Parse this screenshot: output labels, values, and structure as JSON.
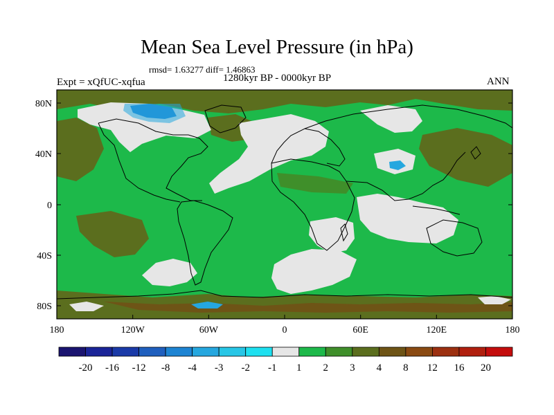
{
  "title": "Mean Sea Level Pressure (in hPa)",
  "stats": "rmsd= 1.63277  diff= 1.46863",
  "period": "1280kyr BP - 0000kyr BP",
  "experiment": "Expt = xQfUC-xqfua",
  "season": "ANN",
  "lat_ticks": [
    "80N",
    "40N",
    "0",
    "40S",
    "80S"
  ],
  "lon_ticks": [
    "180",
    "120W",
    "60W",
    "0",
    "60E",
    "120E",
    "180"
  ],
  "colorbar": {
    "labels": [
      "-20",
      "-16",
      "-12",
      "-8",
      "-4",
      "-3",
      "-2",
      "-1",
      "1",
      "2",
      "3",
      "4",
      "8",
      "12",
      "16",
      "20"
    ],
    "colors": [
      "#1a1470",
      "#1a2498",
      "#1a3aa8",
      "#1f5fbe",
      "#1d84d3",
      "#25a7df",
      "#27c6e6",
      "#1ee0f0",
      "#e6e6e6",
      "#1db94a",
      "#3f8f2a",
      "#5b6e1e",
      "#6e5416",
      "#8a4a12",
      "#9c3010",
      "#b01f0e",
      "#c40d0d"
    ]
  },
  "colors": {
    "base": "#1db94a",
    "neutral": "#e6e6e6",
    "olive": "#5b6e1e",
    "olive_light": "#3f8f2a",
    "brown": "#6e5416",
    "cyan": "#25a7df",
    "blue": "#1d84d3"
  }
}
